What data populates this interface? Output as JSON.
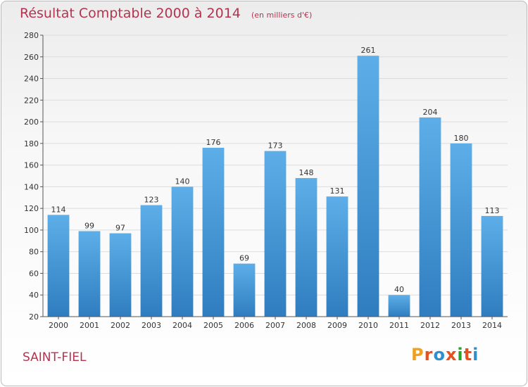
{
  "header": {
    "title": "Résultat Comptable 2000 à 2014",
    "subtitle": "(en milliers d'€)"
  },
  "footer": {
    "city": "SAINT-FIEL",
    "logo": [
      "P",
      "r",
      "o",
      "x",
      "i",
      "t",
      "i"
    ]
  },
  "colors": {
    "title": "#b5334e",
    "bar_top": "#5daee8",
    "bar_bottom": "#2f7dbf",
    "logo": [
      "#f0a020",
      "#e8501e",
      "#2d8fd0",
      "#e8501e",
      "#2aa12a",
      "#e8501e",
      "#2d8fd0"
    ]
  },
  "chart_data": {
    "type": "bar",
    "title": "Résultat Comptable 2000 à 2014",
    "subtitle": "(en milliers d'€)",
    "categories": [
      "2000",
      "2001",
      "2002",
      "2003",
      "2004",
      "2005",
      "2006",
      "2007",
      "2008",
      "2009",
      "2010",
      "2011",
      "2012",
      "2013",
      "2014"
    ],
    "values": [
      114,
      99,
      97,
      123,
      140,
      176,
      69,
      173,
      148,
      131,
      261,
      40,
      204,
      180,
      113
    ],
    "ylim": [
      20,
      280
    ],
    "yticks": [
      20,
      40,
      60,
      80,
      100,
      120,
      140,
      160,
      180,
      200,
      220,
      240,
      260,
      280
    ],
    "grid": true,
    "legend": "none"
  }
}
